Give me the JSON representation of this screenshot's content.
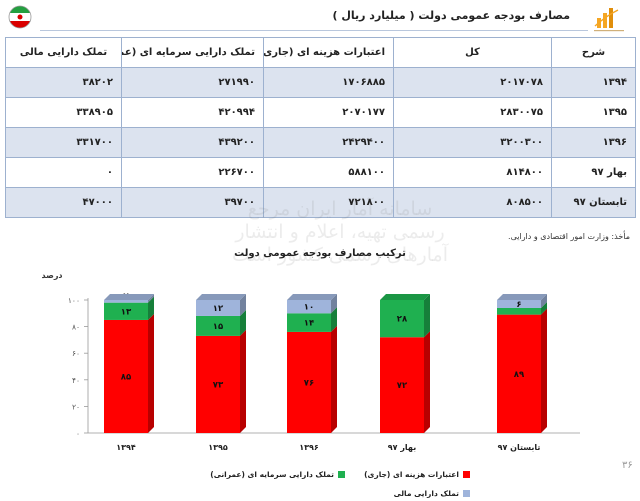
{
  "header": {
    "title": "مصارف بودجه عمومی دولت ( میلیارد ریال )",
    "left_logo": "iran-flag-emblem-icon",
    "right_logo": "bar-chart-logo-icon"
  },
  "table": {
    "headers": [
      "شرح",
      "کل",
      "اعتبارات هزینه ای (جاری)",
      "تملک دارایی سرمایه ای (عمرانی)",
      "تملک دارایی مالی"
    ],
    "rows": [
      [
        "۱۳۹۴",
        "۲۰۱۷۰۷۸",
        "۱۷۰۶۸۸۵",
        "۲۷۱۹۹۰",
        "۳۸۲۰۲"
      ],
      [
        "۱۳۹۵",
        "۲۸۳۰۰۷۵",
        "۲۰۷۰۱۷۷",
        "۴۲۰۹۹۴",
        "۳۳۸۹۰۵"
      ],
      [
        "۱۳۹۶",
        "۳۲۰۰۳۰۰",
        "۲۴۲۹۴۰۰",
        "۴۳۹۲۰۰",
        "۳۳۱۷۰۰"
      ],
      [
        "بهار ۹۷",
        "۸۱۴۸۰۰",
        "۵۸۸۱۰۰",
        "۲۲۶۷۰۰",
        "۰"
      ],
      [
        "تابستان ۹۷",
        "۸۰۸۵۰۰",
        "۷۲۱۸۰۰",
        "۳۹۷۰۰",
        "۴۷۰۰۰"
      ]
    ]
  },
  "source": "مأخذ: وزارت امور اقتصادی و دارایی.",
  "watermark": [
    "سامانه آمار ایران مرجع",
    "رسمی تهیه، اعلام و انتشار",
    "آمارهای رسمی کشور است"
  ],
  "page_number": "۳۶",
  "colors": {
    "current": "#ff0000",
    "capital": "#1fb050",
    "financial": "#9fb4db",
    "row_alt": "#dce3ef",
    "border": "#9db1cf"
  },
  "chart_data": {
    "type": "bar",
    "stacked": true,
    "title": "ترکیب مصارف بودجه عمومی دولت",
    "ylabel": "درصد",
    "ylim": [
      0,
      100
    ],
    "yticks": [
      "۰",
      "۲۰",
      "۴۰",
      "۶۰",
      "۸۰",
      "۱۰۰"
    ],
    "ytick_values": [
      0,
      20,
      40,
      60,
      80,
      100
    ],
    "categories": [
      "۱۳۹۴",
      "۱۳۹۵",
      "۱۳۹۶",
      "بهار ۹۷",
      "تابستان ۹۷"
    ],
    "series": [
      {
        "name": "اعتبارات هزینه ای (جاری)",
        "values": [
          85,
          73,
          76,
          72,
          89
        ],
        "labels": [
          "۸۵",
          "۷۳",
          "۷۶",
          "۷۲",
          "۸۹"
        ],
        "color": "#ff0000"
      },
      {
        "name": "تملک دارایی سرمایه ای (عمرانی)",
        "values": [
          13,
          15,
          14,
          28,
          5
        ],
        "labels": [
          "۱۳",
          "۱۵",
          "۱۴",
          "۲۸",
          "۵"
        ],
        "color": "#1fb050"
      },
      {
        "name": "تملک دارایی مالی",
        "values": [
          2,
          12,
          10,
          0,
          6
        ],
        "labels": [
          "۲",
          "۱۲",
          "۱۰",
          "۰",
          "۶"
        ],
        "color": "#9fb4db"
      }
    ],
    "legend_position": "bottom",
    "grid": false
  }
}
